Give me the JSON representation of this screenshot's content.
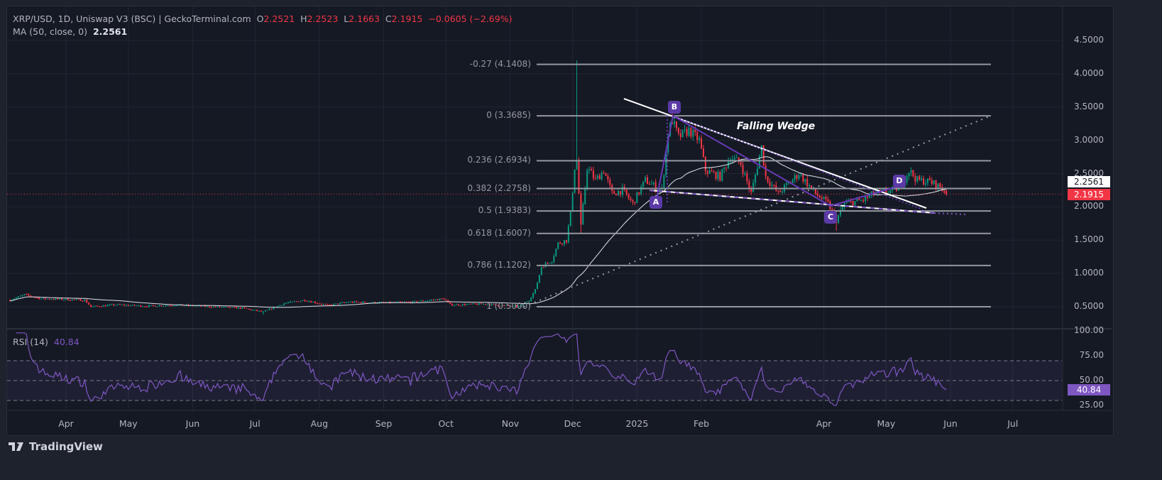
{
  "header": {
    "symbol": "XRP/USD, 1D, Uniswap V3 (BSC) | GeckoTerminal.com",
    "o_label": "O",
    "o": "2.2521",
    "h_label": "H",
    "h": "2.2523",
    "l_label": "L",
    "l": "2.1663",
    "c_label": "C",
    "c": "2.1915",
    "change": "−0.0605 (−2.69%)",
    "ma_label": "MA (50, close, 0)",
    "ma_value": "2.2561"
  },
  "rsi": {
    "label": "RSI (14)",
    "value": "40.84",
    "axis": [
      "100.00",
      "75.00",
      "50.00",
      "25.00"
    ]
  },
  "price_axis": [
    "4.5000",
    "4.0000",
    "3.5000",
    "3.0000",
    "2.5000",
    "2.0000",
    "1.5000",
    "1.0000",
    "0.5000"
  ],
  "price_tags": {
    "ma": "2.2561",
    "last": "2.1915"
  },
  "time_axis": [
    "Apr",
    "May",
    "Jun",
    "Jul",
    "Aug",
    "Sep",
    "Oct",
    "Nov",
    "Dec",
    "2025",
    "Feb",
    "Apr",
    "May",
    "Jun",
    "Jul"
  ],
  "annotations": {
    "pattern": "Falling Wedge",
    "points": [
      "A",
      "B",
      "C",
      "D"
    ]
  },
  "fib_labels": [
    "-0.27 (4.1408)",
    "0 (3.3685)",
    "0.236 (2.6934)",
    "0.382 (2.2758)",
    "0.5 (1.9383)",
    "0.618 (1.6007)",
    "0.786 (1.1202)",
    "1 (0.5000)"
  ],
  "footer": {
    "brand": "TradingView"
  },
  "colors": {
    "up": "#089981",
    "down": "#f23645",
    "ma": "#e0e3eb",
    "rsi": "#7e57c2",
    "pattern": "#5b3aa6"
  },
  "chart_data": {
    "type": "candlestick",
    "title": "XRP/USD, 1D",
    "ylim": [
      0.25,
      4.75
    ],
    "fib_levels": [
      [
        -0.27,
        4.1408
      ],
      [
        0,
        3.3685
      ],
      [
        0.236,
        2.6934
      ],
      [
        0.382,
        2.2758
      ],
      [
        0.5,
        1.9383
      ],
      [
        0.618,
        1.6007
      ],
      [
        0.786,
        1.1202
      ],
      [
        1,
        0.5
      ]
    ],
    "close_anchors": [
      [
        "2024-03-05",
        0.6
      ],
      [
        "2024-03-12",
        0.68
      ],
      [
        "2024-03-20",
        0.62
      ],
      [
        "2024-04-01",
        0.61
      ],
      [
        "2024-04-10",
        0.6
      ],
      [
        "2024-04-13",
        0.5
      ],
      [
        "2024-04-25",
        0.53
      ],
      [
        "2024-05-10",
        0.51
      ],
      [
        "2024-05-25",
        0.53
      ],
      [
        "2024-06-10",
        0.5
      ],
      [
        "2024-06-25",
        0.48
      ],
      [
        "2024-07-05",
        0.42
      ],
      [
        "2024-07-15",
        0.55
      ],
      [
        "2024-07-25",
        0.6
      ],
      [
        "2024-08-05",
        0.52
      ],
      [
        "2024-08-15",
        0.57
      ],
      [
        "2024-09-01",
        0.56
      ],
      [
        "2024-09-15",
        0.57
      ],
      [
        "2024-09-30",
        0.62
      ],
      [
        "2024-10-03",
        0.53
      ],
      [
        "2024-10-20",
        0.54
      ],
      [
        "2024-11-05",
        0.5
      ],
      [
        "2024-11-10",
        0.6
      ],
      [
        "2024-11-13",
        0.75
      ],
      [
        "2024-11-16",
        1.1
      ],
      [
        "2024-11-21",
        1.2
      ],
      [
        "2024-11-24",
        1.45
      ],
      [
        "2024-11-28",
        1.5
      ],
      [
        "2024-11-30",
        1.9
      ],
      [
        "2024-12-02",
        2.6
      ],
      [
        "2024-12-03",
        2.7
      ],
      [
        "2024-12-05",
        1.7
      ],
      [
        "2024-12-08",
        2.6
      ],
      [
        "2024-12-12",
        2.4
      ],
      [
        "2024-12-16",
        2.55
      ],
      [
        "2024-12-20",
        2.2
      ],
      [
        "2024-12-25",
        2.25
      ],
      [
        "2024-12-30",
        2.05
      ],
      [
        "2025-01-05",
        2.4
      ],
      [
        "2025-01-10",
        2.3
      ],
      [
        "2025-01-13",
        2.25
      ],
      [
        "2025-01-16",
        3.1
      ],
      [
        "2025-01-18",
        3.3
      ],
      [
        "2025-01-21",
        3.05
      ],
      [
        "2025-01-26",
        3.15
      ],
      [
        "2025-01-31",
        3.0
      ],
      [
        "2025-02-03",
        2.55
      ],
      [
        "2025-02-10",
        2.45
      ],
      [
        "2025-02-15",
        2.75
      ],
      [
        "2025-02-20",
        2.65
      ],
      [
        "2025-02-25",
        2.2
      ],
      [
        "2025-03-02",
        2.9
      ],
      [
        "2025-03-04",
        2.45
      ],
      [
        "2025-03-10",
        2.2
      ],
      [
        "2025-03-15",
        2.35
      ],
      [
        "2025-03-20",
        2.5
      ],
      [
        "2025-03-28",
        2.2
      ],
      [
        "2025-04-03",
        2.05
      ],
      [
        "2025-04-07",
        1.8
      ],
      [
        "2025-04-11",
        2.05
      ],
      [
        "2025-04-20",
        2.1
      ],
      [
        "2025-04-25",
        2.2
      ],
      [
        "2025-05-01",
        2.22
      ],
      [
        "2025-05-08",
        2.3
      ],
      [
        "2025-05-12",
        2.55
      ],
      [
        "2025-05-16",
        2.4
      ],
      [
        "2025-05-22",
        2.38
      ],
      [
        "2025-05-27",
        2.3
      ],
      [
        "2025-05-30",
        2.19
      ]
    ],
    "wick_extremes": [
      [
        "2024-12-03",
        4.2,
        null
      ],
      [
        "2024-12-05",
        null,
        1.6
      ],
      [
        "2025-04-07",
        null,
        1.64
      ],
      [
        "2024-07-05",
        null,
        0.38
      ],
      [
        "2025-01-18",
        3.4,
        null
      ]
    ],
    "moving_average": {
      "period": 50,
      "last": 2.2561
    },
    "rsi": {
      "period": 14,
      "last": 40.84,
      "bands": [
        70,
        50,
        30
      ],
      "ylim": [
        20,
        100
      ]
    }
  }
}
